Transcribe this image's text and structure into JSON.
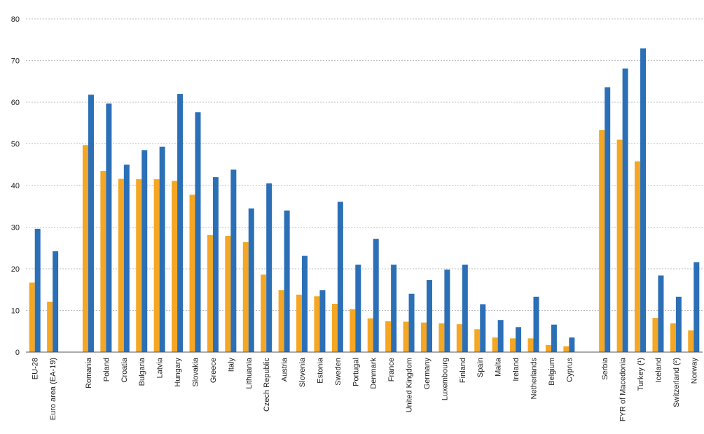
{
  "chart_data": {
    "type": "bar",
    "title": "",
    "xlabel": "",
    "ylabel": "",
    "ylim": [
      0,
      80
    ],
    "yticks": [
      0,
      10,
      20,
      30,
      40,
      50,
      60,
      70,
      80
    ],
    "grid": true,
    "legend": "none",
    "groups": [
      [
        "EU-28",
        "Euro area (EA-19)"
      ],
      [
        "Romania",
        "Poland",
        "Croatia",
        "Bulgaria",
        "Latvia",
        "Hungary",
        "Slovakia",
        "Greece",
        "Italy",
        "Lithuania",
        "Czech Republic",
        "Austria",
        "Slovenia",
        "Estonia",
        "Sweden",
        "Portugal",
        "Denmark",
        "France",
        "United Kingdom",
        "Germany",
        "Luxembourg",
        "Finland",
        "Spain",
        "Malta",
        "Ireland",
        "Netherlands",
        "Belgium",
        "Cyprus"
      ],
      [
        "Serbia",
        "FYR of Macedonia",
        "Turkey (¹)",
        "Iceland",
        "Switzerland (²)",
        "Norway"
      ]
    ],
    "series": [
      {
        "color": "#f5a623",
        "values": [
          16.7,
          12.1,
          49.7,
          43.5,
          41.6,
          41.5,
          41.5,
          41.1,
          37.8,
          28.1,
          27.9,
          26.4,
          18.6,
          14.9,
          13.8,
          13.4,
          11.6,
          10.3,
          8.1,
          7.4,
          7.3,
          7.1,
          6.9,
          6.7,
          5.5,
          3.5,
          3.3,
          3.3,
          1.7,
          1.4,
          53.3,
          51.0,
          45.8,
          8.2,
          6.9,
          5.2
        ]
      },
      {
        "color": "#2b6fb6",
        "values": [
          29.6,
          24.2,
          61.8,
          59.7,
          45.0,
          48.5,
          49.3,
          62.0,
          57.6,
          42.0,
          43.8,
          34.5,
          40.5,
          34.0,
          23.1,
          14.9,
          36.1,
          21.0,
          27.2,
          21.0,
          14.0,
          17.3,
          19.8,
          21.0,
          11.5,
          7.7,
          6.0,
          13.3,
          6.6,
          3.5,
          63.6,
          68.1,
          72.9,
          18.4,
          13.3,
          21.6
        ]
      }
    ]
  }
}
